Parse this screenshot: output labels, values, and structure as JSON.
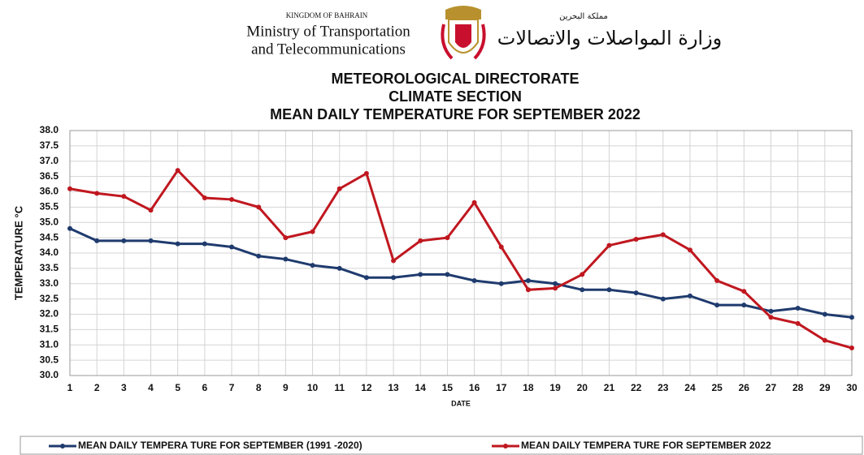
{
  "header": {
    "kingdom": "KINGDOM OF BAHRAIN",
    "ministry_line1": "Ministry of Transportation",
    "ministry_line2": "and Telecommunications",
    "kingdom_ar": "مملكة البحرين",
    "ministry_ar": "وزارة المواصلات والاتصالات"
  },
  "chart_data": {
    "type": "line",
    "title": [
      "METEOROLOGICAL DIRECTORATE",
      "CLIMATE SECTION",
      "MEAN DAILY TEMPERATURE  FOR SEPTEMBER 2022"
    ],
    "xlabel": "DATE",
    "ylabel": "TEMPERATURE °C",
    "x": [
      1,
      2,
      3,
      4,
      5,
      6,
      7,
      8,
      9,
      10,
      11,
      12,
      13,
      14,
      15,
      16,
      17,
      18,
      19,
      20,
      21,
      22,
      23,
      24,
      25,
      26,
      27,
      28,
      29,
      30
    ],
    "xlim": [
      1,
      30
    ],
    "xticks": [
      1,
      2,
      3,
      4,
      5,
      6,
      7,
      8,
      9,
      10,
      11,
      12,
      13,
      14,
      15,
      16,
      17,
      18,
      19,
      20,
      21,
      22,
      23,
      24,
      25,
      26,
      27,
      28,
      29,
      30
    ],
    "ylim": [
      30,
      38
    ],
    "yticks": [
      {
        "value": 30,
        "label": "30.0"
      },
      {
        "value": 30.5,
        "label": "30.5"
      },
      {
        "value": 31,
        "label": "31.0"
      },
      {
        "value": 31.5,
        "label": "31.5"
      },
      {
        "value": 32,
        "label": "32.0"
      },
      {
        "value": 32.5,
        "label": "32.5"
      },
      {
        "value": 33,
        "label": "33.0"
      },
      {
        "value": 33.5,
        "label": "33.5"
      },
      {
        "value": 34,
        "label": "34.0"
      },
      {
        "value": 34.5,
        "label": "34.5"
      },
      {
        "value": 35,
        "label": "35.0"
      },
      {
        "value": 35.5,
        "label": "35.5"
      },
      {
        "value": 36,
        "label": "36.0"
      },
      {
        "value": 36.5,
        "label": "36.5"
      },
      {
        "value": 37,
        "label": "37.0"
      },
      {
        "value": 37.5,
        "label": "37.5"
      },
      {
        "value": 38,
        "label": "38.0"
      }
    ],
    "grid": true,
    "legend": "bottom",
    "series": [
      {
        "name": "MEAN DAILY TEMPERA TURE FOR SEPTEMBER (1991 -2020)",
        "color": "#1f3b6e",
        "values": [
          34.8,
          34.4,
          34.4,
          34.4,
          34.3,
          34.3,
          34.2,
          33.9,
          33.8,
          33.6,
          33.5,
          33.2,
          33.2,
          33.3,
          33.3,
          33.1,
          33.0,
          33.1,
          33.0,
          32.8,
          32.8,
          32.7,
          32.5,
          32.6,
          32.3,
          32.3,
          32.1,
          32.2,
          32.0,
          31.9
        ]
      },
      {
        "name": "MEAN DAILY TEMPERA TURE FOR SEPTEMBER 2022",
        "color": "#c0171f",
        "values": [
          36.1,
          35.95,
          35.85,
          35.4,
          36.7,
          35.8,
          35.75,
          35.5,
          34.5,
          34.7,
          36.1,
          36.6,
          33.75,
          34.4,
          34.5,
          35.65,
          34.2,
          32.8,
          32.85,
          33.3,
          34.25,
          34.45,
          34.6,
          34.1,
          33.1,
          32.75,
          31.9,
          31.7,
          31.15,
          30.9
        ]
      }
    ]
  }
}
